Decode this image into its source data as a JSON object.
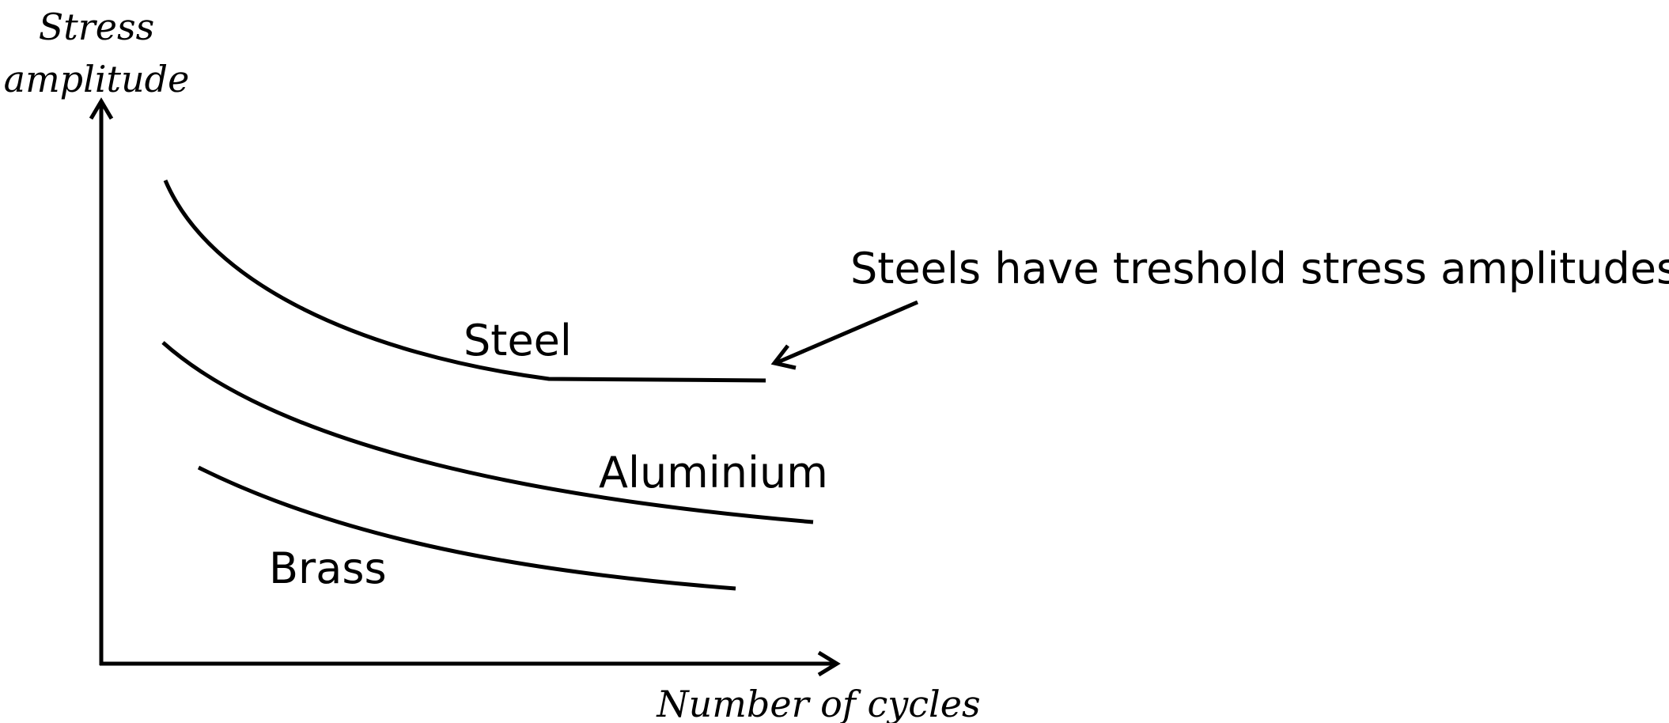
{
  "chart_data": {
    "type": "line",
    "ylabel_line1": "Stress",
    "ylabel_line2": "amplitude",
    "xlabel": "Number of cycles",
    "grid": false,
    "series": [
      {
        "name": "Steel"
      },
      {
        "name": "Aluminium"
      },
      {
        "name": "Brass"
      }
    ],
    "annotation": "Steels have treshold stress amplitudes"
  }
}
